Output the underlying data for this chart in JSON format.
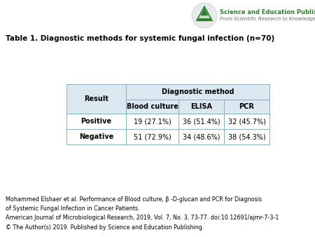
{
  "title": "Table 1. Diagnostic methods for systemic fungal infection (n=70)",
  "header_bg": "#dce8f0",
  "cell_bg": "#ffffff",
  "border_color": "#8aafc0",
  "title_fontsize": 7.5,
  "table_fontsize": 7.0,
  "sub_headers": [
    "Blood culture",
    "ELISA",
    "PCR"
  ],
  "data_rows": [
    [
      "Positive",
      "19 (27.1%)",
      "36 (51.4%)",
      "32 (45.7%)"
    ],
    [
      "Negative",
      "51 (72.9%)",
      "34 (48.6%)",
      "38 (54.3%)"
    ]
  ],
  "footer_text": "Mohammed Elshaer et al. Performance of Blood culture, β -D-glucan and PCR for Diagnosis\nof Systemic Fungal Infection in Cancer Patients.\nAmerican Journal of Microbiological Research, 2019, Vol. 7, No. 3, 73-77. doi:10.12691/ajmr-7-3-1\n© The Author(s) 2019. Published by Science and Education Publishing.",
  "footer_fontsize": 5.8,
  "logo_text_line1": "Science and Education Publishing",
  "logo_text_line2": "From Scientific Research to Knowledge",
  "logo_green": "#2e7d32",
  "logo_circle_color": "#e8e8e8",
  "bg_color": "#ffffff"
}
